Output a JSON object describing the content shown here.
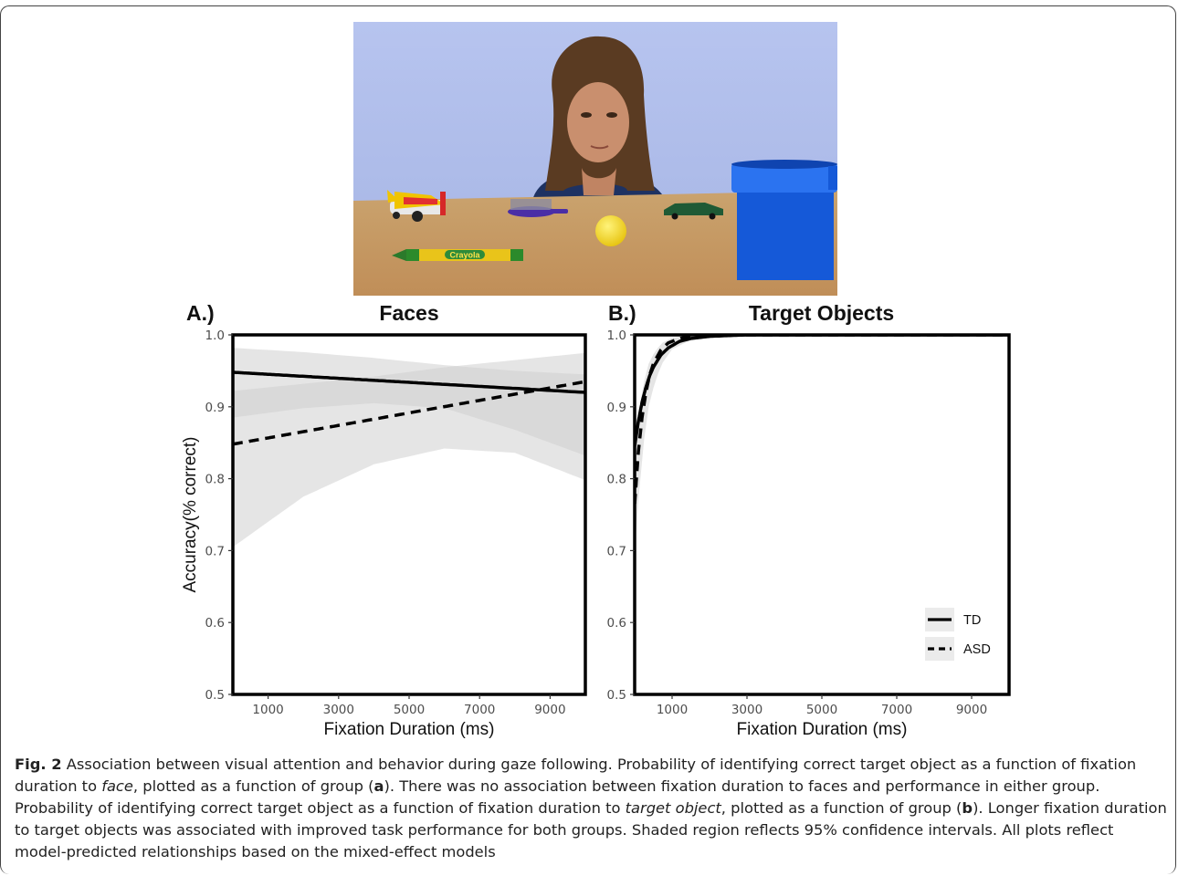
{
  "figure": {
    "caption_label": "Fig. 2",
    "caption_parts": [
      {
        "t": " Association between visual attention and behavior during gaze following. Probability of identifying correct target object as a function of fixation duration to ",
        "s": "n"
      },
      {
        "t": "face",
        "s": "i"
      },
      {
        "t": ", plotted as a function of group (",
        "s": "n"
      },
      {
        "t": "a",
        "s": "b"
      },
      {
        "t": "). There was no association between fixation duration to faces and performance in either group. Probability of identifying correct target object as a function of fixation duration to ",
        "s": "n"
      },
      {
        "t": "target object",
        "s": "i"
      },
      {
        "t": ", plotted as a function of group (",
        "s": "n"
      },
      {
        "t": "b",
        "s": "b"
      },
      {
        "t": "). Longer fixation duration to target objects was associated with improved task performance for both groups. Shaded region reflects 95% confidence intervals. All plots reflect model-predicted relationships based on the mixed-effect models",
        "s": "n"
      }
    ]
  },
  "photo": {
    "crayon_label": "Crayola",
    "colors": {
      "wall": "#aebde9",
      "table": "#c89a63",
      "cup": "#1a66e6",
      "ball": "#f3dc1c",
      "crayon": "#e9c41a"
    }
  },
  "colors": {
    "line": "#000000",
    "ribbon": "#d9d9d9",
    "axis": "#000000"
  },
  "chart_data": [
    {
      "panel_label": "A.)",
      "title": "Faces",
      "type": "line",
      "xlabel": "Fixation Duration (ms)",
      "ylabel": "Accuracy(% correct)",
      "xlim": [
        0,
        10000
      ],
      "ylim": [
        0.5,
        1.0
      ],
      "xticks": [
        1000,
        3000,
        5000,
        7000,
        9000
      ],
      "yticks": [
        0.5,
        0.6,
        0.7,
        0.8,
        0.9,
        1.0
      ],
      "ytick_labels": [
        "0.5",
        "0.6",
        "0.7",
        "0.8",
        "0.9",
        "1.0"
      ],
      "legend": null,
      "series": [
        {
          "name": "TD",
          "style": "solid",
          "x": [
            0,
            10000
          ],
          "y": [
            0.948,
            0.92
          ],
          "ci_x": [
            0,
            2000,
            4000,
            6000,
            8000,
            10000
          ],
          "ci_lower": [
            0.885,
            0.898,
            0.905,
            0.898,
            0.868,
            0.832
          ],
          "ci_upper": [
            0.982,
            0.976,
            0.968,
            0.958,
            0.95,
            0.945
          ]
        },
        {
          "name": "ASD",
          "style": "dashed",
          "x": [
            0,
            10000
          ],
          "y": [
            0.848,
            0.935
          ],
          "ci_x": [
            0,
            2000,
            4000,
            6000,
            8000,
            10000
          ],
          "ci_lower": [
            0.705,
            0.775,
            0.82,
            0.842,
            0.836,
            0.798
          ],
          "ci_upper": [
            0.922,
            0.932,
            0.942,
            0.955,
            0.965,
            0.975
          ]
        }
      ]
    },
    {
      "panel_label": "B.)",
      "title": "Target Objects",
      "type": "line",
      "xlabel": "Fixation Duration (ms)",
      "ylabel": "",
      "xlim": [
        0,
        10000
      ],
      "ylim": [
        0.5,
        1.0
      ],
      "xticks": [
        1000,
        3000,
        5000,
        7000,
        9000
      ],
      "yticks": [
        0.5,
        0.6,
        0.7,
        0.8,
        0.9,
        1.0
      ],
      "ytick_labels": [
        "0.5",
        "0.6",
        "0.7",
        "0.8",
        "0.9",
        "1.0"
      ],
      "legend": {
        "position": "bottom-right",
        "entries": [
          {
            "name": "TD",
            "style": "solid"
          },
          {
            "name": "ASD",
            "style": "dashed"
          }
        ]
      },
      "series": [
        {
          "name": "TD",
          "style": "solid",
          "x": [
            0,
            100,
            200,
            300,
            400,
            500,
            700,
            900,
            1200,
            1500,
            2000,
            2500,
            3000,
            10000
          ],
          "y": [
            0.845,
            0.88,
            0.907,
            0.927,
            0.943,
            0.955,
            0.972,
            0.982,
            0.991,
            0.995,
            0.998,
            0.999,
            1.0,
            1.0
          ]
        },
        {
          "name": "ASD",
          "style": "dashed",
          "x": [
            0,
            100,
            200,
            300,
            400,
            500,
            700,
            900,
            1200,
            1500,
            2000,
            2500,
            3000,
            10000
          ],
          "y": [
            0.765,
            0.838,
            0.886,
            0.92,
            0.944,
            0.96,
            0.979,
            0.989,
            0.995,
            0.998,
            0.999,
            1.0,
            1.0,
            1.0
          ],
          "ci_x": [
            0,
            200,
            400,
            700,
            1000,
            1500,
            2000,
            3000,
            10000
          ],
          "ci_lower": [
            0.7,
            0.835,
            0.91,
            0.958,
            0.98,
            0.993,
            0.997,
            1.0,
            1.0
          ],
          "ci_upper": [
            0.85,
            0.925,
            0.965,
            0.988,
            0.996,
            0.999,
            1.0,
            1.0,
            1.0
          ]
        }
      ]
    }
  ]
}
